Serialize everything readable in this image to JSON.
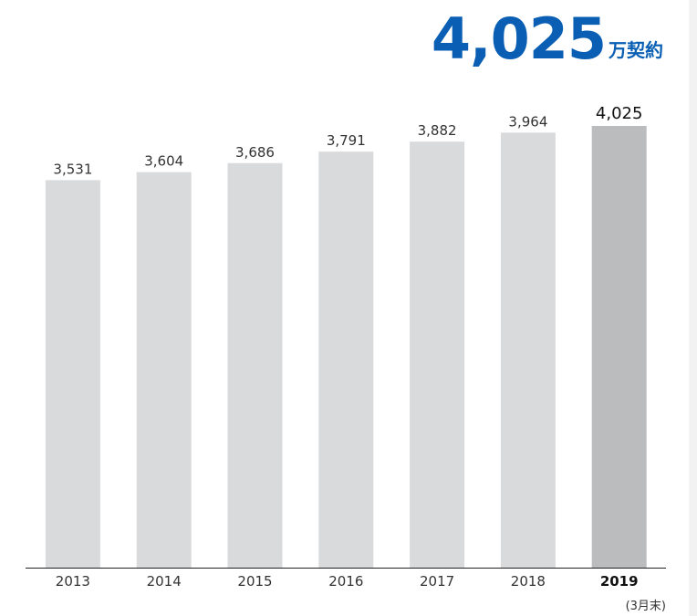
{
  "chart_data": {
    "type": "bar",
    "headline": "4,025",
    "headline_unit": "万契約",
    "categories": [
      "2013",
      "2014",
      "2015",
      "2016",
      "2017",
      "2018",
      "2019"
    ],
    "values": [
      3531,
      3604,
      3686,
      3791,
      3882,
      3964,
      4025
    ],
    "value_labels": [
      "3,531",
      "3,604",
      "3,686",
      "3,791",
      "3,882",
      "3,964",
      "4,025"
    ],
    "colors": [
      "#d9dadc",
      "#d9dadc",
      "#d9dadc",
      "#d9dadc",
      "#d9dadc",
      "#d9dadc",
      "#bbbcbe"
    ],
    "note": "(3月末)"
  }
}
